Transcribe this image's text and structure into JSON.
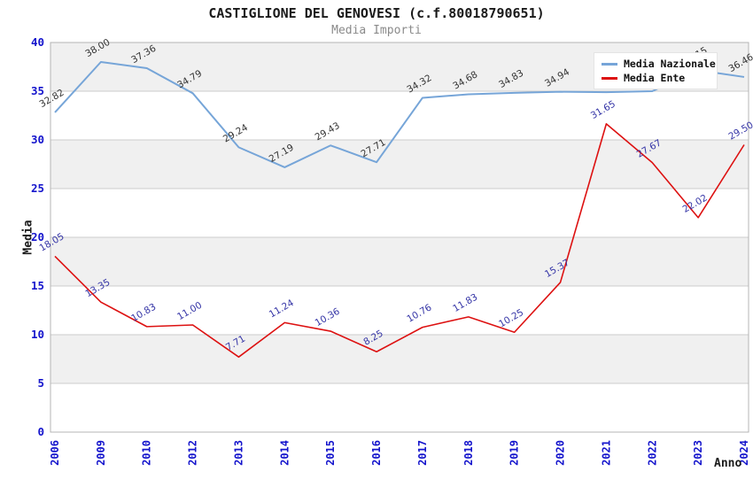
{
  "title": "CASTIGLIONE DEL GENOVESI (c.f.80018790651)",
  "subtitle": "Media Importi",
  "chart_data": {
    "type": "line",
    "title": "CASTIGLIONE DEL GENOVESI (c.f.80018790651)",
    "subtitle": "Media Importi",
    "xlabel": "Anno",
    "ylabel": "Media",
    "ylim": [
      0,
      40
    ],
    "y_ticks": [
      0,
      5,
      10,
      15,
      20,
      25,
      30,
      35,
      40
    ],
    "grid": true,
    "legend_position": "top-right",
    "categories": [
      "2006",
      "2009",
      "2010",
      "2012",
      "2013",
      "2014",
      "2015",
      "2016",
      "2017",
      "2018",
      "2019",
      "2020",
      "2021",
      "2022",
      "2023",
      "2024"
    ],
    "series": [
      {
        "name": "Media Nazionale",
        "color": "#76a5d8",
        "label_color": "#333333",
        "values": [
          32.82,
          38.0,
          37.36,
          34.79,
          29.24,
          27.19,
          29.43,
          27.71,
          34.32,
          34.68,
          34.83,
          34.94,
          34.9,
          35.0,
          37.15,
          36.46
        ],
        "point_labels": [
          "32.82",
          "38.00",
          "37.36",
          "34.79",
          "29.24",
          "27.19",
          "29.43",
          "27.71",
          "34.32",
          "34.68",
          "34.83",
          "34.94",
          "",
          "",
          "37.15",
          "36.46"
        ]
      },
      {
        "name": "Media Ente",
        "color": "#dd1111",
        "label_color": "#3434a6",
        "values": [
          18.05,
          13.35,
          10.83,
          11.0,
          7.71,
          11.24,
          10.36,
          8.25,
          10.76,
          11.83,
          10.25,
          15.37,
          31.65,
          27.67,
          22.02,
          29.5
        ],
        "point_labels": [
          "18.05",
          "13.35",
          "10.83",
          "11.00",
          "7.71",
          "11.24",
          "10.36",
          "8.25",
          "10.76",
          "11.83",
          "10.25",
          "15.37",
          "31.65",
          "27.67",
          "22.02",
          "29.50"
        ]
      }
    ],
    "colors": {
      "tick_label": "#1414cc",
      "band": "#f0f0f0",
      "band_alt": "#ffffff",
      "grid": "#cccccc",
      "plot_border": "#b4b4b4",
      "background": "#ffffff"
    }
  }
}
